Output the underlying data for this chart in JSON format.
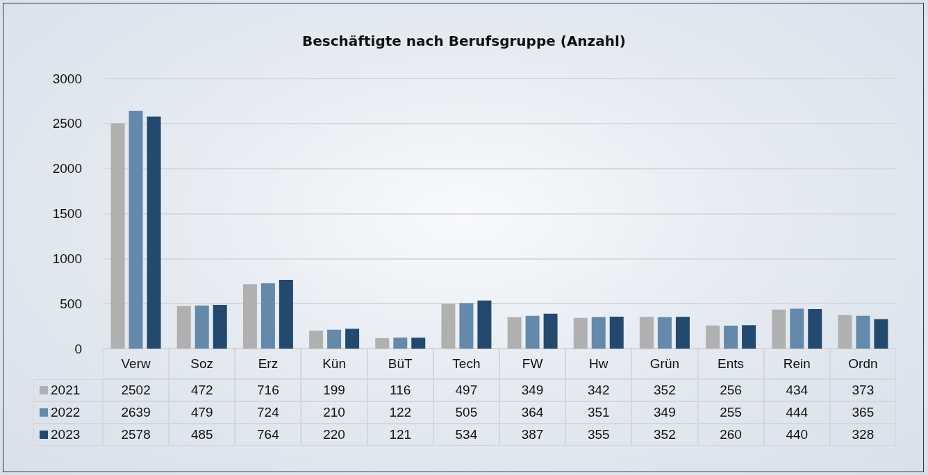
{
  "chart_data": {
    "type": "bar",
    "title": "Beschäftigte nach Berufsgruppe (Anzahl)",
    "categories": [
      "Verw",
      "Soz",
      "Erz",
      "Kün",
      "BüT",
      "Tech",
      "FW",
      "Hw",
      "Grün",
      "Ents",
      "Rein",
      "Ordn"
    ],
    "series": [
      {
        "name": "2021",
        "color": "#b0b0b0",
        "values": [
          2502,
          472,
          716,
          199,
          116,
          497,
          349,
          342,
          352,
          256,
          434,
          373
        ]
      },
      {
        "name": "2022",
        "color": "#6589ab",
        "values": [
          2639,
          479,
          724,
          210,
          122,
          505,
          364,
          351,
          349,
          255,
          444,
          365
        ]
      },
      {
        "name": "2023",
        "color": "#234a6e",
        "values": [
          2578,
          485,
          764,
          220,
          121,
          534,
          387,
          355,
          352,
          260,
          440,
          328
        ]
      }
    ],
    "ylim": [
      0,
      3000
    ],
    "yticks": [
      0,
      500,
      1000,
      1500,
      2000,
      2500,
      3000
    ],
    "grid": "y",
    "legend": "bottom",
    "data_labels": true
  }
}
